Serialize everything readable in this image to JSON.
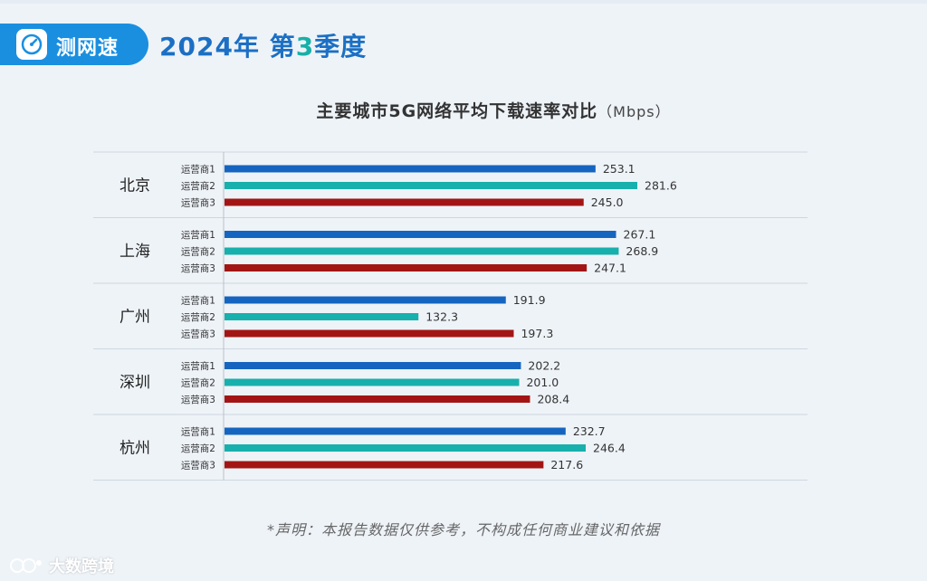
{
  "brand": {
    "label": "测网速",
    "icon": "speedometer-icon"
  },
  "headline": {
    "year_part": "2024年 第",
    "quarter_num": "3",
    "season_part": "季度"
  },
  "chart_data": {
    "type": "bar",
    "orientation": "horizontal",
    "title": "主要城市5G网络平均下载速率对比",
    "unit": "（Mbps）",
    "xlim": [
      0,
      300
    ],
    "groups": [
      "北京",
      "上海",
      "广州",
      "深圳",
      "杭州"
    ],
    "series": [
      {
        "name": "运营商1",
        "color": "#1565c0",
        "values": [
          253.1,
          267.1,
          191.9,
          202.2,
          232.7
        ]
      },
      {
        "name": "运营商2",
        "color": "#17b0ac",
        "values": [
          281.6,
          268.9,
          132.3,
          201.0,
          246.4
        ]
      },
      {
        "name": "运营商3",
        "color": "#a31515",
        "values": [
          245.0,
          247.1,
          197.3,
          208.4,
          217.6
        ]
      }
    ],
    "value_labels": [
      [
        "253.1",
        "281.6",
        "245.0"
      ],
      [
        "267.1",
        "268.9",
        "247.1"
      ],
      [
        "191.9",
        "132.3",
        "197.3"
      ],
      [
        "202.2",
        "201.0",
        "208.4"
      ],
      [
        "232.7",
        "246.4",
        "217.6"
      ]
    ]
  },
  "disclaimer": "*声明：本报告数据仅供参考，不构成任何商业建议和依据",
  "watermark": "大数跨境"
}
